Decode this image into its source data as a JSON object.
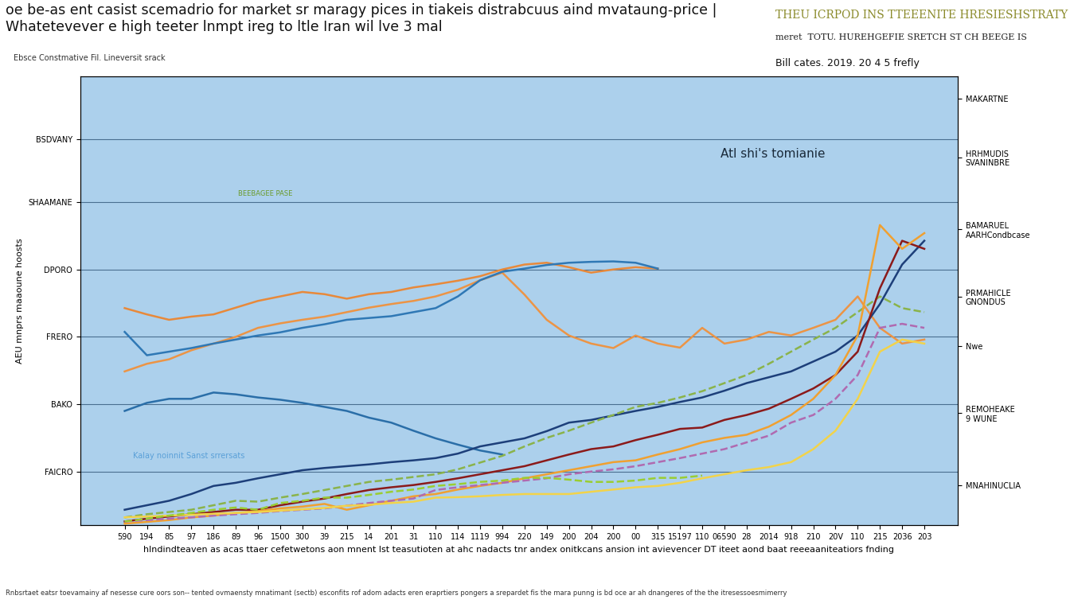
{
  "chart_data": {
    "type": "line",
    "title": "oe be-as ent casist scemadrio for market sr maragy pices in tiakeis distrabcuus aind mvataung-price |\nWhatetevever e high teeter lnmpt ireg to ltle Iran wil lve 3 mal",
    "subtitle": "Ebsce Constmative Fil. Lineversit srack",
    "x_label": "hlndindteaven as acas ttaer cefetwetons aon mnent lst teasutioten at ahc nadacts tnr andex onitkcans ansion int avievencer DT iteet aond baat reeeaaniteatiors fnding",
    "y_label": "AEU mnprs maaoune hoosts",
    "annotations": [
      "THEU ICRPOD INS TTEEENITE HRESIESHSTRATY",
      "meret  TOTU. HUREHGEFIE SRETCH ST CH BEEGE IS",
      "Bill cates. 2019. 20 4 5 frefly",
      "Atl shi's tomianie",
      "BEEBAGEE PASE",
      "Kalay noinnit Sanst srrersats",
      "Rnbsrtaet eatsr toevamainy af nesesse cure oors son-- tented ovmaensty mnatimant (sectb) esconfits rof adom adacts eren eraprtiers pongers a srepardet fis the mara punng is bd oce ar ah dnangeres of the the itresessoesmimerry"
    ],
    "categories": [
      "590",
      "194",
      "85",
      "97",
      "186",
      "89",
      "96",
      "1500",
      "300",
      "39",
      "215",
      "14",
      "201",
      "31",
      "110",
      "114",
      "1119",
      "994",
      "220",
      "149",
      "200",
      "204",
      "200",
      "00",
      "315",
      "15197",
      "110",
      "06590",
      "28",
      "2014",
      "918",
      "210",
      "20V",
      "110",
      "215",
      "2036",
      "203"
    ],
    "ylim": [
      0,
      100
    ],
    "yticks": [
      {
        "value": 12,
        "label": "FAICRO"
      },
      {
        "value": 27,
        "label": "BAKO"
      },
      {
        "value": 42,
        "label": "FRERO"
      },
      {
        "value": 57,
        "label": "DPORO"
      },
      {
        "value": 72,
        "label": "SHAAMANE"
      },
      {
        "value": 86,
        "label": "BSDVANY"
      }
    ],
    "y2lim": [
      0,
      100
    ],
    "y2ticks": [
      {
        "value": 9,
        "label": "MNAHINUCLIA"
      },
      {
        "value": 25,
        "label": "REMOHEAKE\n9 WUNE"
      },
      {
        "value": 40,
        "label": "Nwe"
      },
      {
        "value": 51,
        "label": "PRMAHICLE\nGNONDUS"
      },
      {
        "value": 66,
        "label": "BAMARUEL\nAARHCondbcase"
      },
      {
        "value": 82,
        "label": "HRHMUDIS\nSVANINBRE"
      },
      {
        "value": 95,
        "label": "MAKARTNE"
      }
    ],
    "grid": true,
    "series": [
      {
        "color": "#e8893a",
        "line_style": "solid",
        "values": [
          48.4,
          47,
          45.8,
          46.5,
          47,
          48.5,
          50,
          51,
          52,
          51.5,
          50.5,
          51.5,
          52,
          53,
          53.7,
          54.5,
          55.5,
          57,
          58.1,
          58.5,
          57.5,
          56.3,
          57,
          57.5,
          57.2,
          null,
          null,
          null,
          null,
          null,
          null,
          null,
          null,
          null,
          null,
          null,
          null
        ]
      },
      {
        "color": "#ec9445",
        "line_style": "solid",
        "values": [
          34.3,
          36,
          37,
          39,
          40.5,
          42,
          44,
          45,
          45.8,
          46.5,
          47.5,
          48.5,
          49.3,
          50,
          51,
          52.5,
          54.6,
          56.3,
          51.4,
          45.8,
          42.3,
          40.5,
          39.5,
          42.3,
          40.5,
          39.6,
          44,
          40.5,
          41.4,
          43.1,
          42.3,
          44,
          45.8,
          51,
          44,
          40.5,
          41.4
        ]
      },
      {
        "color": "#2f78b5",
        "line_style": "solid",
        "values": [
          43.1,
          37.9,
          38.7,
          39.5,
          40.5,
          41.4,
          42.3,
          43,
          44,
          44.8,
          45.8,
          46.2,
          46.6,
          47.5,
          48.4,
          51,
          54.6,
          56.5,
          57.2,
          58,
          58.5,
          58.7,
          58.8,
          58.5,
          57.2,
          null,
          null,
          null,
          null,
          null,
          null,
          null,
          null,
          null,
          null,
          null,
          null
        ]
      },
      {
        "color": "#2a6ea8",
        "line_style": "solid",
        "values": [
          25.5,
          27.3,
          28.2,
          28.2,
          29.6,
          29.2,
          28.5,
          28,
          27.3,
          26.4,
          25.5,
          24,
          22.9,
          21.1,
          19.4,
          18,
          16.7,
          15.8,
          null,
          null,
          null,
          null,
          null,
          null,
          null,
          null,
          null,
          null,
          null,
          null,
          null,
          null,
          null,
          null,
          null,
          null,
          null
        ]
      },
      {
        "color": "#1d3f7a",
        "line_style": "solid",
        "values": [
          3.5,
          4.5,
          5.5,
          7,
          8.8,
          9.5,
          10.5,
          11.4,
          12.3,
          12.8,
          13.2,
          13.6,
          14.1,
          14.5,
          15,
          16,
          17.6,
          18.5,
          19.4,
          21,
          22.9,
          23.5,
          24.5,
          25.5,
          26.4,
          27.5,
          28.5,
          30,
          31.7,
          33,
          34.3,
          36.5,
          38.7,
          42.3,
          49.3,
          58.1,
          63.4
        ]
      },
      {
        "color": "#8ab34a",
        "line_style": "dashed",
        "values": [
          1.8,
          2.5,
          3,
          3.5,
          4.5,
          5.5,
          5.3,
          6.2,
          7,
          7.9,
          8.8,
          9.7,
          10.2,
          10.8,
          11.4,
          12.5,
          14,
          15.5,
          17.6,
          19.5,
          21.1,
          22.9,
          24.6,
          26.4,
          27.3,
          28.5,
          29.9,
          31.7,
          33.5,
          36,
          38.7,
          41.4,
          44,
          47.5,
          51,
          48.4,
          47.5
        ]
      },
      {
        "color": "#8b1a1a",
        "line_style": "solid",
        "values": [
          0.9,
          1.5,
          2,
          2.5,
          3,
          3.5,
          3.5,
          4.5,
          5.3,
          6,
          7,
          7.9,
          8.5,
          9,
          9.7,
          10.5,
          11.4,
          12.3,
          13.2,
          14.5,
          15.8,
          17,
          17.6,
          19,
          20.2,
          21.5,
          21.8,
          23.5,
          24.6,
          26,
          28.2,
          30.5,
          33.5,
          38.7,
          52.8,
          63.4,
          61.6
        ]
      },
      {
        "color": "#f0a030",
        "line_style": "solid",
        "values": [
          0.4,
          0.8,
          1.2,
          1.8,
          2.2,
          2.8,
          3.2,
          3.8,
          4.2,
          4.8,
          3.5,
          4.5,
          5.5,
          6.5,
          7,
          8,
          8.8,
          9.5,
          10.5,
          11.4,
          12.3,
          13.2,
          14.1,
          14.5,
          15.8,
          17,
          18.5,
          19.5,
          20.2,
          22,
          24.6,
          28.2,
          33.5,
          42.3,
          66.9,
          61.6,
          65.1
        ]
      },
      {
        "color": "#b06ab0",
        "line_style": "dashed",
        "values": [
          0.9,
          1.2,
          1.5,
          1.8,
          2.2,
          2.5,
          2.8,
          3.2,
          3.5,
          3.8,
          4.4,
          5,
          5.5,
          6,
          7.9,
          8.5,
          9,
          9.5,
          10,
          10.5,
          11.4,
          12,
          12.5,
          13.2,
          14.1,
          15,
          16,
          17,
          18.5,
          20,
          22.9,
          24.6,
          28.2,
          33.5,
          44,
          44.9,
          44
        ]
      },
      {
        "color": "#f2d34a",
        "line_style": "solid",
        "values": [
          1.8,
          2,
          2.2,
          2.4,
          2.6,
          2.8,
          3,
          3.3,
          3.6,
          3.9,
          4.4,
          4.6,
          5,
          5.3,
          6.2,
          6.3,
          6.5,
          6.8,
          7,
          7,
          7,
          7.5,
          8,
          8.5,
          8.8,
          9.5,
          10.5,
          11.4,
          12.3,
          13,
          14.1,
          17,
          21.1,
          28.2,
          38.7,
          41.4,
          40.5
        ]
      },
      {
        "color": "#9acd32",
        "line_style": "dashed",
        "values": [
          0.9,
          1.5,
          2.2,
          2.8,
          3.5,
          4,
          3.5,
          5,
          5.5,
          6.2,
          6.2,
          6.8,
          7.5,
          8,
          8.8,
          9.2,
          9.7,
          10,
          10.6,
          10.6,
          10.2,
          9.7,
          9.7,
          10,
          10.6,
          10.6,
          11.1,
          null,
          null,
          null,
          null,
          null,
          null,
          null,
          null,
          null,
          null
        ]
      }
    ]
  }
}
